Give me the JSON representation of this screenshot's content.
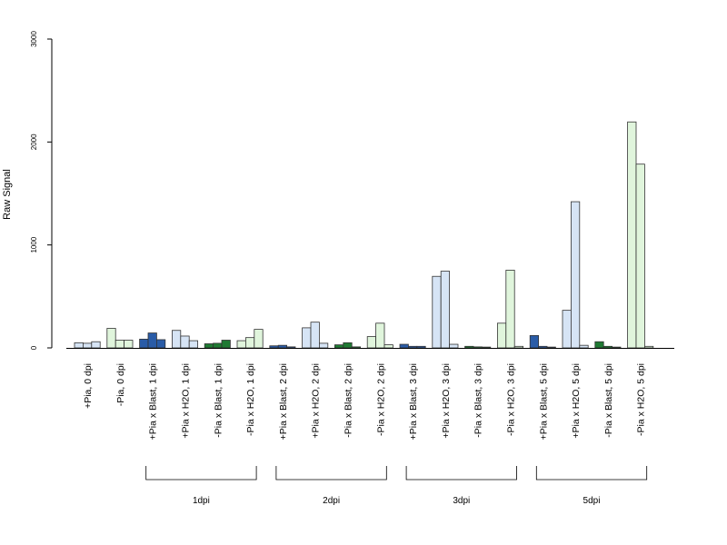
{
  "chart_data": {
    "type": "bar",
    "ylabel": "Raw Signal",
    "ylim": [
      0,
      3000
    ],
    "yticks": [
      0,
      1000,
      2000,
      3000
    ],
    "colors": {
      "dark_blue": "#2a5ca7",
      "light_blue": "#d6e4f5",
      "dark_green": "#1f7a33",
      "light_green": "#e0f5dc"
    },
    "groups": [
      {
        "label": "+Pia, 0 dpi",
        "color": "light_blue",
        "values": [
          50,
          45,
          60
        ]
      },
      {
        "label": "-Pia, 0 dpi",
        "color": "light_green",
        "values": [
          190,
          75,
          75
        ]
      },
      {
        "label": "+Pia x Blast, 1 dpi",
        "color": "dark_blue",
        "values": [
          85,
          145,
          80
        ]
      },
      {
        "label": "+Pia x H2O, 1 dpi",
        "color": "light_blue",
        "values": [
          170,
          115,
          70
        ]
      },
      {
        "label": "-Pia x Blast, 1 dpi",
        "color": "dark_green",
        "values": [
          40,
          45,
          75
        ]
      },
      {
        "label": "-Pia x H2O, 1 dpi",
        "color": "light_green",
        "values": [
          70,
          100,
          180
        ]
      },
      {
        "label": "+Pia x Blast, 2 dpi",
        "color": "dark_blue",
        "values": [
          20,
          25,
          10
        ]
      },
      {
        "label": "+Pia x H2O, 2 dpi",
        "color": "light_blue",
        "values": [
          195,
          250,
          45
        ]
      },
      {
        "label": "-Pia x Blast, 2 dpi",
        "color": "dark_green",
        "values": [
          30,
          50,
          10
        ]
      },
      {
        "label": "-Pia x H2O, 2 dpi",
        "color": "light_green",
        "values": [
          110,
          240,
          30
        ]
      },
      {
        "label": "+Pia x Blast, 3 dpi",
        "color": "dark_blue",
        "values": [
          35,
          15,
          15
        ]
      },
      {
        "label": "+Pia x H2O, 3 dpi",
        "color": "light_blue",
        "values": [
          695,
          745,
          35
        ]
      },
      {
        "label": "-Pia x Blast, 3 dpi",
        "color": "dark_green",
        "values": [
          15,
          10,
          8
        ]
      },
      {
        "label": "-Pia x H2O, 3 dpi",
        "color": "light_green",
        "values": [
          240,
          755,
          15
        ]
      },
      {
        "label": "+Pia x Blast, 5 dpi",
        "color": "dark_blue",
        "values": [
          120,
          15,
          8
        ]
      },
      {
        "label": "+Pia x H2O, 5 dpi",
        "color": "light_blue",
        "values": [
          365,
          1420,
          25
        ]
      },
      {
        "label": "-Pia x Blast, 5 dpi",
        "color": "dark_green",
        "values": [
          60,
          15,
          8
        ]
      },
      {
        "label": "-Pia x H2O, 5 dpi",
        "color": "light_green",
        "values": [
          2195,
          1785,
          15
        ]
      }
    ],
    "brackets": [
      {
        "label": "1dpi",
        "from": 2,
        "to": 5
      },
      {
        "label": "2dpi",
        "from": 6,
        "to": 9
      },
      {
        "label": "3dpi",
        "from": 10,
        "to": 13
      },
      {
        "label": "5dpi",
        "from": 14,
        "to": 17
      }
    ]
  }
}
